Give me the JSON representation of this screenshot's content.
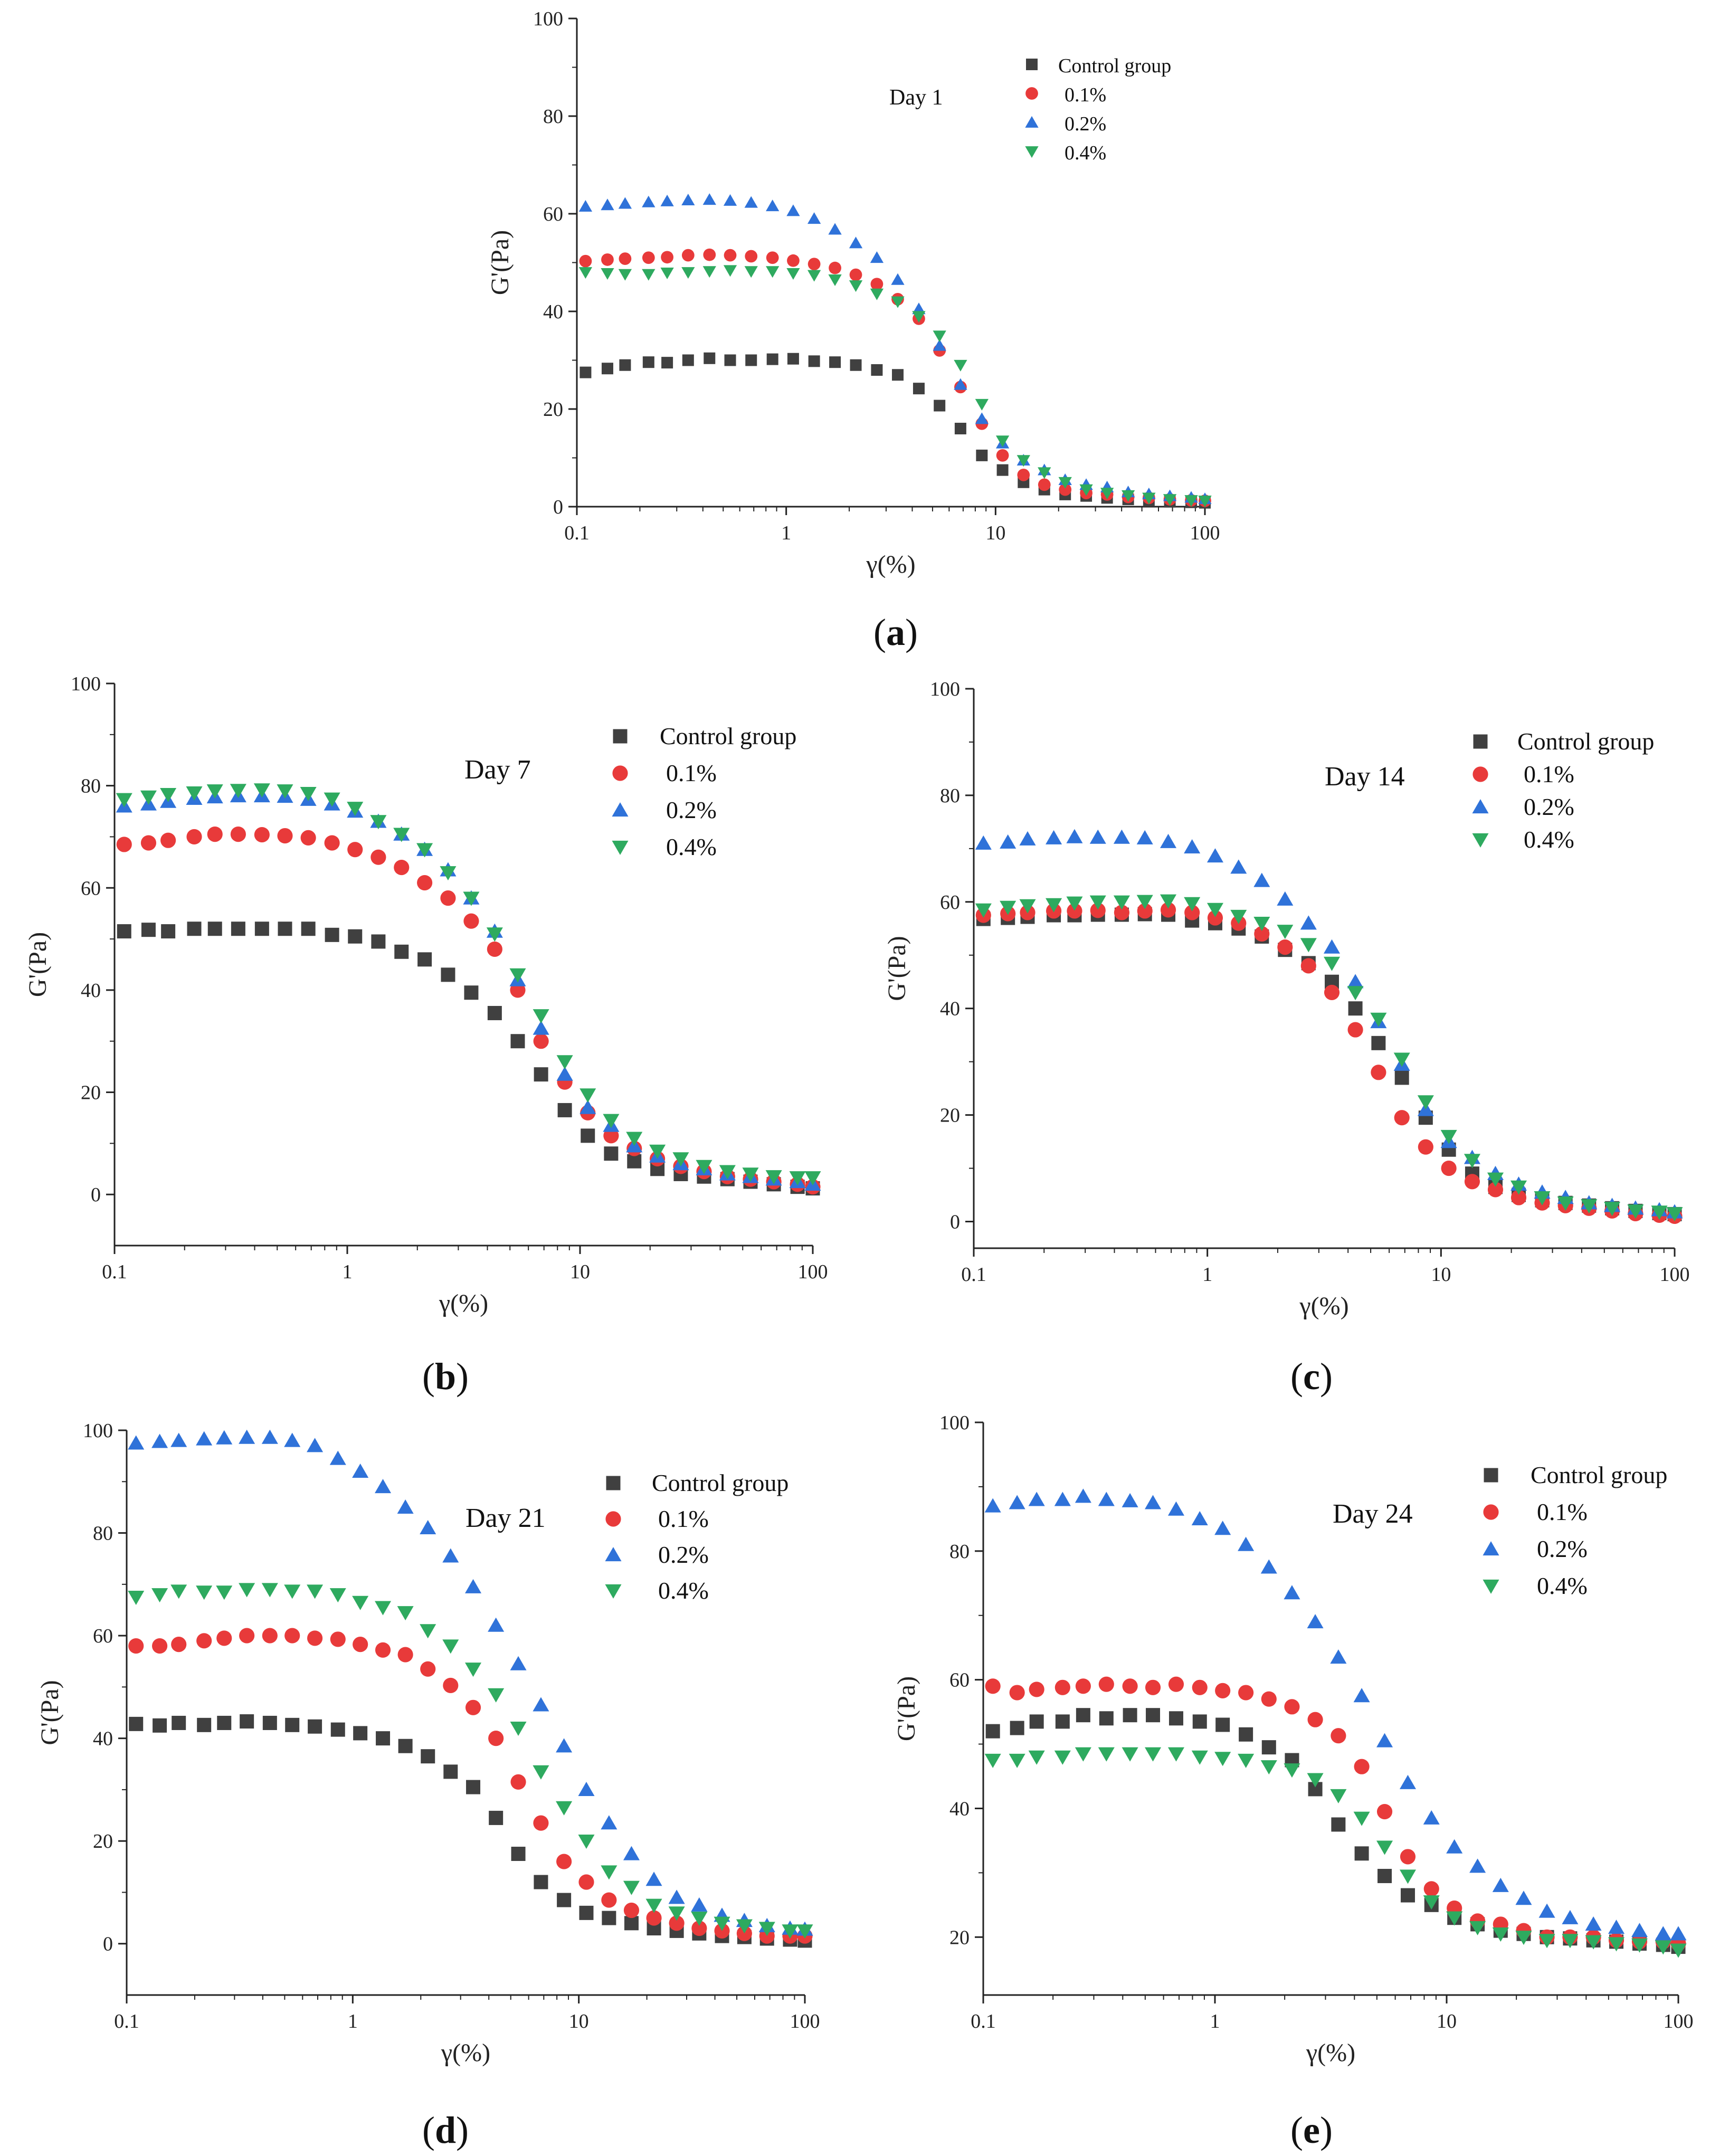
{
  "colors": {
    "control": "#404040",
    "p01": "#e83a3a",
    "p02": "#2f72d9",
    "p04": "#2eaa5f",
    "axis": "#222222"
  },
  "series_names": [
    "Control group",
    "0.1%",
    "0.2%",
    "0.4%"
  ],
  "chart_data": [
    {
      "id": "a",
      "type": "scatter",
      "caption_letter": "a",
      "annotation": "Day 1",
      "xlabel": "γ(%)",
      "ylabel": "G'(Pa)",
      "xscale": "log",
      "xlim": [
        0.1,
        100
      ],
      "ylim": [
        0,
        100
      ],
      "xticks": [
        "0.1",
        "1",
        "10",
        "100"
      ],
      "yticks": [
        "0",
        "20",
        "40",
        "60",
        "80",
        "100"
      ],
      "legend_position": "top-right",
      "x": [
        0.11,
        0.14,
        0.17,
        0.22,
        0.27,
        0.34,
        0.43,
        0.54,
        0.68,
        0.86,
        1.08,
        1.36,
        1.71,
        2.15,
        2.71,
        3.41,
        4.3,
        5.4,
        6.8,
        8.6,
        10.8,
        13.6,
        17.1,
        21.5,
        27.1,
        34.1,
        43,
        54,
        68,
        86,
        100
      ],
      "series": [
        {
          "name": "Control group",
          "marker": "square",
          "values": [
            27.5,
            28.3,
            29,
            29.6,
            29.5,
            30,
            30.4,
            30,
            30,
            30.2,
            30.3,
            29.8,
            29.6,
            29,
            28,
            27,
            24.2,
            20.7,
            16,
            10.5,
            7.5,
            5,
            3.5,
            2.5,
            2.2,
            1.8,
            1.5,
            1.2,
            1,
            0.9,
            0.8
          ]
        },
        {
          "name": "0.1%",
          "marker": "circle",
          "values": [
            50.3,
            50.6,
            50.8,
            51,
            51.1,
            51.5,
            51.6,
            51.5,
            51.3,
            51,
            50.4,
            49.7,
            48.9,
            47.5,
            45.6,
            42.5,
            38.5,
            32,
            24.5,
            17,
            10.5,
            6.5,
            4.5,
            3.5,
            2.8,
            2.5,
            2,
            1.8,
            1.5,
            1.3,
            1.2
          ]
        },
        {
          "name": "0.2%",
          "marker": "triangle-up",
          "values": [
            61.5,
            61.8,
            62.1,
            62.4,
            62.6,
            62.8,
            62.9,
            62.7,
            62.3,
            61.6,
            60.6,
            59,
            56.8,
            54,
            51,
            46.5,
            40.5,
            33,
            25,
            18,
            13,
            9.5,
            7.5,
            5.5,
            4.5,
            4,
            3,
            2.6,
            2.2,
            1.9,
            1.6
          ]
        },
        {
          "name": "0.4%",
          "marker": "triangle-down",
          "values": [
            48,
            47.8,
            47.6,
            47.6,
            47.9,
            48,
            48.2,
            48.4,
            48.2,
            48.2,
            47.8,
            47.4,
            46.5,
            45.3,
            43.6,
            42,
            39,
            35,
            29,
            21,
            13.5,
            9.5,
            7,
            5,
            3.5,
            2.8,
            2.3,
            1.8,
            1.5,
            1.3,
            1.2
          ]
        }
      ]
    },
    {
      "id": "b",
      "type": "scatter",
      "caption_letter": "b",
      "annotation": "Day 7",
      "xlabel": "γ(%)",
      "ylabel": "G'(Pa)",
      "xscale": "log",
      "xlim": [
        0.1,
        100
      ],
      "ylim": [
        -10,
        100
      ],
      "xticks": [
        "0.1",
        "1",
        "10",
        "100"
      ],
      "yticks": [
        "0",
        "20",
        "40",
        "60",
        "80",
        "100"
      ],
      "legend_position": "top-right",
      "x": [
        0.11,
        0.14,
        0.17,
        0.22,
        0.27,
        0.34,
        0.43,
        0.54,
        0.68,
        0.86,
        1.08,
        1.36,
        1.71,
        2.15,
        2.71,
        3.41,
        4.3,
        5.4,
        6.8,
        8.6,
        10.8,
        13.6,
        17.1,
        21.5,
        27.1,
        34.1,
        43,
        54,
        68,
        86,
        100
      ],
      "series": [
        {
          "name": "Control group",
          "marker": "square",
          "values": [
            51.5,
            51.8,
            51.5,
            52,
            52,
            52,
            52,
            52,
            52,
            50.8,
            50.5,
            49.5,
            47.5,
            46,
            43,
            39.5,
            35.5,
            30,
            23.5,
            16.5,
            11.5,
            8,
            6.5,
            5,
            4,
            3.5,
            3,
            2.5,
            2,
            1.5,
            1.2
          ]
        },
        {
          "name": "0.1%",
          "marker": "circle",
          "values": [
            68.5,
            68.8,
            69.3,
            70,
            70.5,
            70.5,
            70.4,
            70.2,
            69.8,
            68.8,
            67.5,
            66,
            64,
            61,
            58,
            53.5,
            48,
            40,
            30,
            22,
            16,
            11.5,
            9,
            7,
            5.5,
            4.5,
            3.5,
            3,
            2.5,
            2,
            1.5
          ]
        },
        {
          "name": "0.2%",
          "marker": "triangle-up",
          "values": [
            76,
            76.4,
            76.9,
            77.5,
            77.8,
            78,
            78,
            77.9,
            77.3,
            76.4,
            75,
            73,
            70.5,
            67.5,
            63.5,
            58,
            51.5,
            42,
            32.5,
            23.5,
            17,
            13.5,
            9.5,
            7.5,
            6,
            5,
            4,
            3.5,
            3,
            2.5,
            2
          ]
        },
        {
          "name": "0.4%",
          "marker": "triangle-down",
          "values": [
            77.3,
            77.8,
            78.3,
            78.6,
            79,
            79.1,
            79.2,
            79,
            78.5,
            77.4,
            75.6,
            73,
            70.5,
            67.5,
            63,
            58,
            51,
            43,
            35,
            26,
            19.5,
            14.5,
            11,
            8.5,
            7,
            5.5,
            4.5,
            4,
            3.5,
            3.3,
            3.3
          ]
        }
      ]
    },
    {
      "id": "c",
      "type": "scatter",
      "caption_letter": "c",
      "annotation": "Day 14",
      "xlabel": "γ(%)",
      "ylabel": "G'(Pa)",
      "xscale": "log",
      "xlim": [
        0.1,
        100
      ],
      "ylim": [
        -5,
        100
      ],
      "xticks": [
        "0.1",
        "1",
        "10",
        "100"
      ],
      "yticks": [
        "0",
        "20",
        "40",
        "60",
        "80",
        "100"
      ],
      "legend_position": "top-right",
      "x": [
        0.11,
        0.14,
        0.17,
        0.22,
        0.27,
        0.34,
        0.43,
        0.54,
        0.68,
        0.86,
        1.08,
        1.36,
        1.71,
        2.15,
        2.71,
        3.41,
        4.3,
        5.4,
        6.8,
        8.6,
        10.8,
        13.6,
        17.1,
        21.5,
        27.1,
        34.1,
        43,
        54,
        68,
        86,
        100
      ],
      "series": [
        {
          "name": "Control group",
          "marker": "square",
          "values": [
            56.8,
            57,
            57.2,
            57.5,
            57.5,
            57.6,
            57.6,
            57.7,
            57.6,
            56.5,
            56,
            55,
            53.5,
            51,
            48.5,
            45,
            40,
            33.5,
            27,
            19.5,
            13.5,
            9,
            6.5,
            5,
            4,
            3.5,
            3,
            2.5,
            2,
            1.6,
            1.4
          ]
        },
        {
          "name": "0.1%",
          "marker": "circle",
          "values": [
            57.5,
            57.8,
            58,
            58.3,
            58.3,
            58.4,
            58,
            58.3,
            58.5,
            58,
            57,
            56,
            54,
            51.5,
            48,
            43,
            36,
            28,
            19.5,
            14,
            10,
            7.5,
            6,
            4.5,
            3.5,
            3,
            2.5,
            2,
            1.5,
            1.2,
            1
          ]
        },
        {
          "name": "0.2%",
          "marker": "triangle-up",
          "values": [
            71,
            71.2,
            71.8,
            72,
            72.2,
            72.1,
            72.1,
            72,
            71.3,
            70.3,
            68.6,
            66.5,
            64,
            60.5,
            56,
            51.5,
            45,
            37.5,
            29.5,
            21,
            15,
            12,
            9,
            7,
            5.5,
            4.5,
            3.5,
            3,
            2.5,
            2.2,
            1.8
          ]
        },
        {
          "name": "0.4%",
          "marker": "triangle-down",
          "values": [
            58.5,
            59,
            59.3,
            59.5,
            59.8,
            60,
            60,
            60.1,
            60.2,
            59.7,
            58.6,
            57.3,
            56,
            54.5,
            52,
            48.5,
            43,
            38,
            30.5,
            22.5,
            16,
            11.5,
            8,
            6.5,
            4.5,
            3.5,
            3,
            2.5,
            2,
            1.8,
            1.5
          ]
        }
      ]
    },
    {
      "id": "d",
      "type": "scatter",
      "caption_letter": "d",
      "annotation": "Day 21",
      "xlabel": "γ(%)",
      "ylabel": "G'(Pa)",
      "xscale": "log",
      "xlim": [
        0.1,
        100
      ],
      "ylim": [
        -10,
        100
      ],
      "xticks": [
        "0.1",
        "1",
        "10",
        "100"
      ],
      "yticks": [
        "0",
        "20",
        "40",
        "60",
        "80",
        "100"
      ],
      "legend_position": "top-right",
      "x": [
        0.11,
        0.14,
        0.17,
        0.22,
        0.27,
        0.34,
        0.43,
        0.54,
        0.68,
        0.86,
        1.08,
        1.36,
        1.71,
        2.15,
        2.71,
        3.41,
        4.3,
        5.4,
        6.8,
        8.6,
        10.8,
        13.6,
        17.1,
        21.5,
        27.1,
        34.1,
        43,
        54,
        68,
        86,
        100
      ],
      "series": [
        {
          "name": "Control group",
          "marker": "square",
          "values": [
            42.8,
            42.5,
            43,
            42.6,
            43,
            43.3,
            43,
            42.6,
            42.3,
            41.7,
            41,
            40,
            38.5,
            36.5,
            33.5,
            30.5,
            24.5,
            17.5,
            12,
            8.5,
            6,
            5,
            4,
            3,
            2.5,
            2,
            1.5,
            1.3,
            1,
            0.8,
            0.6
          ]
        },
        {
          "name": "0.1%",
          "marker": "circle",
          "values": [
            58,
            58,
            58.3,
            59,
            59.5,
            60,
            60,
            60,
            59.5,
            59.3,
            58.3,
            57.2,
            56.3,
            53.5,
            50.3,
            46,
            40,
            31.5,
            23.5,
            16,
            12,
            8.5,
            6.5,
            5,
            4,
            3,
            2.5,
            2,
            1.5,
            1.5,
            1.5
          ]
        },
        {
          "name": "0.2%",
          "marker": "triangle-up",
          "values": [
            97.5,
            97.8,
            98,
            98.3,
            98.5,
            98.6,
            98.6,
            98,
            97,
            94.5,
            92,
            89,
            85,
            81,
            75.5,
            69.5,
            62,
            54.5,
            46.5,
            38.5,
            30,
            23.5,
            17.5,
            12.5,
            9,
            7.5,
            5.5,
            4.5,
            3.5,
            3,
            2.8
          ]
        },
        {
          "name": "0.4%",
          "marker": "triangle-down",
          "values": [
            67.5,
            68,
            68.7,
            68.5,
            68.5,
            69,
            69,
            68.7,
            68.7,
            68,
            66.5,
            65.5,
            64.5,
            61,
            58,
            53.5,
            48.5,
            42,
            33.5,
            26.5,
            20,
            14,
            11,
            7.5,
            6,
            5,
            4,
            3.5,
            3,
            2.5,
            2.5
          ]
        }
      ]
    },
    {
      "id": "e",
      "type": "scatter",
      "caption_letter": "e",
      "annotation": "Day 24",
      "xlabel": "γ(%)",
      "ylabel": "G'(Pa)",
      "xscale": "log",
      "xlim": [
        0.1,
        100
      ],
      "ylim": [
        11,
        100
      ],
      "xticks": [
        "0.1",
        "1",
        "10",
        "100"
      ],
      "yticks": [
        "20",
        "40",
        "60",
        "80",
        "100"
      ],
      "legend_position": "top-right",
      "x": [
        0.11,
        0.14,
        0.17,
        0.22,
        0.27,
        0.34,
        0.43,
        0.54,
        0.68,
        0.86,
        1.08,
        1.36,
        1.71,
        2.15,
        2.71,
        3.41,
        4.3,
        5.4,
        6.8,
        8.6,
        10.8,
        13.6,
        17.1,
        21.5,
        27.1,
        34.1,
        43,
        54,
        68,
        86,
        100
      ],
      "series": [
        {
          "name": "Control group",
          "marker": "square",
          "values": [
            52,
            52.5,
            53.5,
            53.5,
            54.5,
            54,
            54.5,
            54.5,
            54,
            53.5,
            53,
            51.5,
            49.5,
            47.5,
            43,
            37.5,
            33,
            29.5,
            26.5,
            25,
            23,
            22,
            21,
            20.5,
            20,
            19.8,
            19.5,
            19.3,
            19,
            18.8,
            18.5
          ]
        },
        {
          "name": "0.1%",
          "marker": "circle",
          "values": [
            59,
            58,
            58.5,
            58.8,
            59,
            59.3,
            59,
            58.8,
            59.3,
            58.8,
            58.3,
            58,
            57,
            55.8,
            53.8,
            51.3,
            46.5,
            39.5,
            32.5,
            27.5,
            24.5,
            22.5,
            22,
            21,
            20,
            20,
            20,
            19.5,
            19.3,
            19.3,
            19
          ]
        },
        {
          "name": "0.2%",
          "marker": "triangle-up",
          "values": [
            87,
            87.5,
            88,
            88,
            88.5,
            88,
            87.8,
            87.5,
            86.5,
            85,
            83.5,
            81,
            77.5,
            73.5,
            69,
            63.5,
            57.5,
            50.5,
            44,
            38.5,
            34,
            31,
            28,
            26,
            24,
            23,
            22,
            21.5,
            21,
            20.5,
            20.5
          ]
        },
        {
          "name": "0.4%",
          "marker": "triangle-down",
          "values": [
            47.5,
            47.5,
            48,
            48,
            48.5,
            48.5,
            48.5,
            48.5,
            48.5,
            48,
            47.8,
            47.5,
            46.5,
            46,
            44.5,
            42,
            38.5,
            34,
            29.5,
            25.5,
            23,
            21.5,
            20.5,
            20,
            19.5,
            19.5,
            19.3,
            19,
            18.8,
            18.5,
            18
          ]
        }
      ]
    }
  ]
}
